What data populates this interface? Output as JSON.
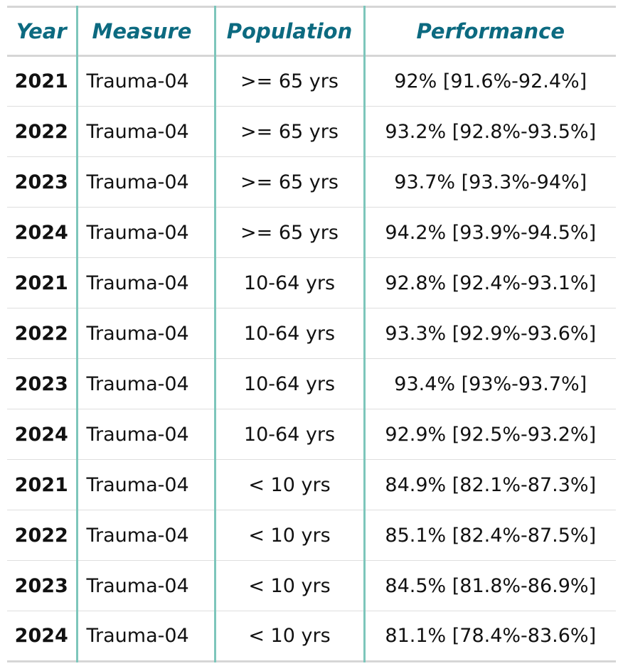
{
  "table": {
    "headers": {
      "year": "Year",
      "measure": "Measure",
      "population": "Population",
      "performance": "Performance"
    },
    "rows": [
      {
        "year": "2021",
        "measure": "Trauma-04",
        "population": ">= 65 yrs",
        "performance": "92% [91.6%-92.4%]"
      },
      {
        "year": "2022",
        "measure": "Trauma-04",
        "population": ">= 65 yrs",
        "performance": "93.2% [92.8%-93.5%]"
      },
      {
        "year": "2023",
        "measure": "Trauma-04",
        "population": ">= 65 yrs",
        "performance": "93.7% [93.3%-94%]"
      },
      {
        "year": "2024",
        "measure": "Trauma-04",
        "population": ">= 65 yrs",
        "performance": "94.2% [93.9%-94.5%]"
      },
      {
        "year": "2021",
        "measure": "Trauma-04",
        "population": "10-64 yrs",
        "performance": "92.8% [92.4%-93.1%]"
      },
      {
        "year": "2022",
        "measure": "Trauma-04",
        "population": "10-64 yrs",
        "performance": "93.3% [92.9%-93.6%]"
      },
      {
        "year": "2023",
        "measure": "Trauma-04",
        "population": "10-64 yrs",
        "performance": "93.4% [93%-93.7%]"
      },
      {
        "year": "2024",
        "measure": "Trauma-04",
        "population": "10-64 yrs",
        "performance": "92.9% [92.5%-93.2%]"
      },
      {
        "year": "2021",
        "measure": "Trauma-04",
        "population": "< 10 yrs",
        "performance": "84.9% [82.1%-87.3%]"
      },
      {
        "year": "2022",
        "measure": "Trauma-04",
        "population": "< 10 yrs",
        "performance": "85.1% [82.4%-87.5%]"
      },
      {
        "year": "2023",
        "measure": "Trauma-04",
        "population": "< 10 yrs",
        "performance": "84.5% [81.8%-86.9%]"
      },
      {
        "year": "2024",
        "measure": "Trauma-04",
        "population": "< 10 yrs",
        "performance": "81.1% [78.4%-83.6%]"
      }
    ]
  },
  "colors": {
    "header_text": "#0c6a80",
    "column_divider": "#7dc6bb",
    "row_border": "#dedede",
    "body_text": "#111111"
  }
}
